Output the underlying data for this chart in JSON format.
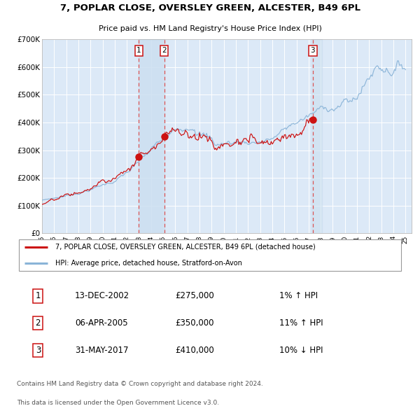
{
  "title": "7, POPLAR CLOSE, OVERSLEY GREEN, ALCESTER, B49 6PL",
  "subtitle": "Price paid vs. HM Land Registry's House Price Index (HPI)",
  "ylim": [
    0,
    700000
  ],
  "yticks": [
    0,
    100000,
    200000,
    300000,
    400000,
    500000,
    600000,
    700000
  ],
  "ytick_labels": [
    "£0",
    "£100K",
    "£200K",
    "£300K",
    "£400K",
    "£500K",
    "£600K",
    "£700K"
  ],
  "bg_color": "#dce9f7",
  "grid_color": "#ffffff",
  "sale1_idx": 96,
  "sale1_price": 275000,
  "sale1_date_str": "13-DEC-2002",
  "sale1_pct": "1% ↑ HPI",
  "sale2_idx": 121,
  "sale2_price": 350000,
  "sale2_date_str": "06-APR-2005",
  "sale2_pct": "11% ↑ HPI",
  "sale3_idx": 268,
  "sale3_price": 410000,
  "sale3_date_str": "31-MAY-2017",
  "sale3_pct": "10% ↓ HPI",
  "hpi_color": "#8ab4d8",
  "price_color": "#cc1111",
  "marker_color": "#cc1111",
  "vline_color": "#dd5555",
  "shade_color": "#ccdff0",
  "legend_label_price": "7, POPLAR CLOSE, OVERSLEY GREEN, ALCESTER, B49 6PL (detached house)",
  "legend_label_hpi": "HPI: Average price, detached house, Stratford-on-Avon",
  "footer1": "Contains HM Land Registry data © Crown copyright and database right 2024.",
  "footer2": "This data is licensed under the Open Government Licence v3.0.",
  "n_months": 361
}
